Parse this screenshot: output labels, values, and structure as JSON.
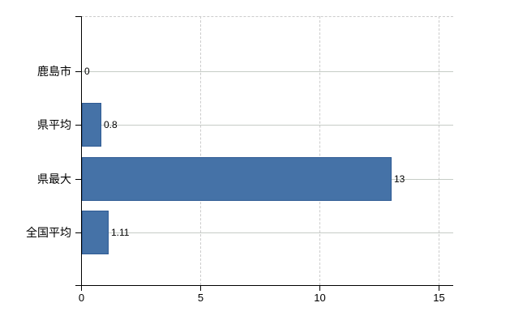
{
  "chart_data": {
    "type": "bar",
    "orientation": "horizontal",
    "title": "",
    "xlabel": "",
    "ylabel": "",
    "categories": [
      "鹿島市",
      "県平均",
      "県最大",
      "全国平均"
    ],
    "values": [
      0,
      0.8,
      13,
      1.11
    ],
    "value_labels": [
      "0",
      "0.8",
      "13",
      "1.11"
    ],
    "x_ticks": [
      0,
      5,
      10,
      15
    ],
    "x_tick_labels": [
      "0",
      "5",
      "10",
      "15"
    ],
    "xlim": [
      0,
      15.6
    ],
    "grid": true,
    "legend": false,
    "gridline_style": {
      "horizontal": "solid",
      "vertical": "dashed",
      "plot_top_border": "dashed"
    },
    "colors": {
      "bar_fill": "#4572a7",
      "bar_border": "#2f5b94",
      "grid_solid": "#c6ccc6",
      "grid_dashed": "#cccccc",
      "axis": "#000000",
      "text": "#000000",
      "background": "#ffffff"
    }
  }
}
